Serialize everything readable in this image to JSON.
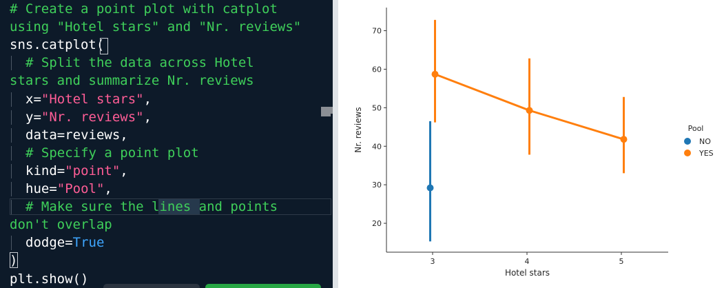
{
  "editor": {
    "lines": [
      {
        "text": "# Create a point plot with catplot",
        "cls": "comment",
        "indent": 0
      },
      {
        "text": "using \"Hotel stars\" and \"Nr. reviews\"",
        "cls": "comment",
        "indent": 0
      },
      {
        "text": "sns.catplot(",
        "cls": "code",
        "indent": 0
      },
      {
        "text": "# Split the data across Hotel",
        "cls": "comment",
        "indent": 1
      },
      {
        "text": "stars and summarize Nr. reviews",
        "cls": "comment",
        "indent": 0
      },
      {
        "text": "x=\"Hotel stars\",",
        "cls": "code",
        "indent": 1,
        "prefix": "x=",
        "str": "\"Hotel stars\"",
        "suffix": ","
      },
      {
        "text": "y=\"Nr. reviews\",",
        "cls": "code",
        "indent": 1,
        "prefix": "y=",
        "str": "\"Nr. reviews\"",
        "suffix": ","
      },
      {
        "text": "data=reviews,",
        "cls": "code",
        "indent": 1
      },
      {
        "text": "# Specify a point plot",
        "cls": "comment",
        "indent": 1
      },
      {
        "text": "kind=\"point\",",
        "cls": "code",
        "indent": 1,
        "prefix": "kind=",
        "str": "\"point\"",
        "suffix": ","
      },
      {
        "text": "hue=\"Pool\",",
        "cls": "code",
        "indent": 1,
        "prefix": "hue=",
        "str": "\"Pool\"",
        "suffix": ","
      },
      {
        "text": "# Make sure the lines and points",
        "cls": "comment",
        "indent": 1
      },
      {
        "text": "don't overlap",
        "cls": "comment",
        "indent": 0
      },
      {
        "text": "dodge=True",
        "cls": "code",
        "indent": 1,
        "prefix": "dodge=",
        "kw": "True"
      },
      {
        "text": ")",
        "cls": "code",
        "indent": 0
      },
      {
        "text": "plt.show()",
        "cls": "code",
        "indent": 0
      }
    ],
    "colors": {
      "background": "#0d1a29",
      "comment": "#3fd05a",
      "string": "#ff5d96",
      "keyword": "#3ea6ff",
      "bottom_button_dark": "#2b3440",
      "bottom_button_green": "#28a745"
    }
  },
  "chart_data": {
    "type": "line",
    "xlabel": "Hotel stars",
    "ylabel": "Nr. reviews",
    "categories": [
      "3",
      "4",
      "5"
    ],
    "y_ticks": [
      20,
      30,
      40,
      50,
      60,
      70
    ],
    "ylim": [
      12.5,
      76
    ],
    "legend": {
      "title": "Pool",
      "placement": "right"
    },
    "series": [
      {
        "name": "NO",
        "color": "#1f77b4",
        "points": [
          {
            "x": "3",
            "y": 29.2,
            "ci": [
              15.3,
              46.5
            ]
          }
        ]
      },
      {
        "name": "YES",
        "color": "#ff7f0e",
        "points": [
          {
            "x": "3",
            "y": 58.7,
            "ci": [
              46.2,
              72.8
            ]
          },
          {
            "x": "4",
            "y": 49.3,
            "ci": [
              37.8,
              62.8
            ]
          },
          {
            "x": "5",
            "y": 41.8,
            "ci": [
              33.0,
              52.8
            ]
          }
        ]
      }
    ]
  }
}
